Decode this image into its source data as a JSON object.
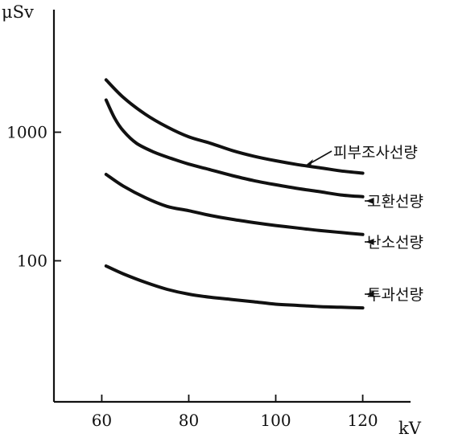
{
  "chart_data": {
    "type": "line",
    "title": "",
    "y_unit": "μSv",
    "x_unit": "kV",
    "y_scale": "log",
    "ylim": [
      8,
      8000
    ],
    "xlim": [
      49,
      131
    ],
    "x_ticks": [
      60,
      80,
      100,
      120
    ],
    "x_tick_labels": [
      "60",
      "80",
      "100",
      "120"
    ],
    "y_ticks": [
      100,
      1000
    ],
    "y_tick_labels": [
      "100",
      "1000"
    ],
    "grid": false,
    "legend": "labels at line ends (right side)",
    "series": [
      {
        "name": "피부조사선량",
        "x": [
          61,
          65,
          70,
          75,
          80,
          85,
          90,
          95,
          100,
          105,
          110,
          115,
          120
        ],
        "y": [
          2550,
          1860,
          1380,
          1100,
          920,
          820,
          720,
          650,
          600,
          560,
          530,
          500,
          480
        ]
      },
      {
        "name": "고환선량",
        "x": [
          61,
          63,
          65,
          68,
          72,
          76,
          80,
          85,
          90,
          95,
          100,
          105,
          110,
          115,
          120
        ],
        "y": [
          1780,
          1280,
          1020,
          820,
          700,
          625,
          565,
          510,
          460,
          420,
          390,
          365,
          345,
          325,
          315
        ]
      },
      {
        "name": "난소선량",
        "x": [
          61,
          65,
          70,
          75,
          80,
          85,
          90,
          95,
          100,
          105,
          110,
          115,
          120
        ],
        "y": [
          470,
          380,
          310,
          265,
          245,
          225,
          210,
          198,
          188,
          180,
          172,
          166,
          160
        ]
      },
      {
        "name": "투과선량",
        "x": [
          61,
          65,
          70,
          75,
          80,
          85,
          90,
          95,
          100,
          105,
          110,
          115,
          120
        ],
        "y": [
          91,
          79,
          68,
          60,
          55,
          52,
          50,
          48,
          46,
          45,
          44,
          43.5,
          43
        ]
      }
    ]
  }
}
